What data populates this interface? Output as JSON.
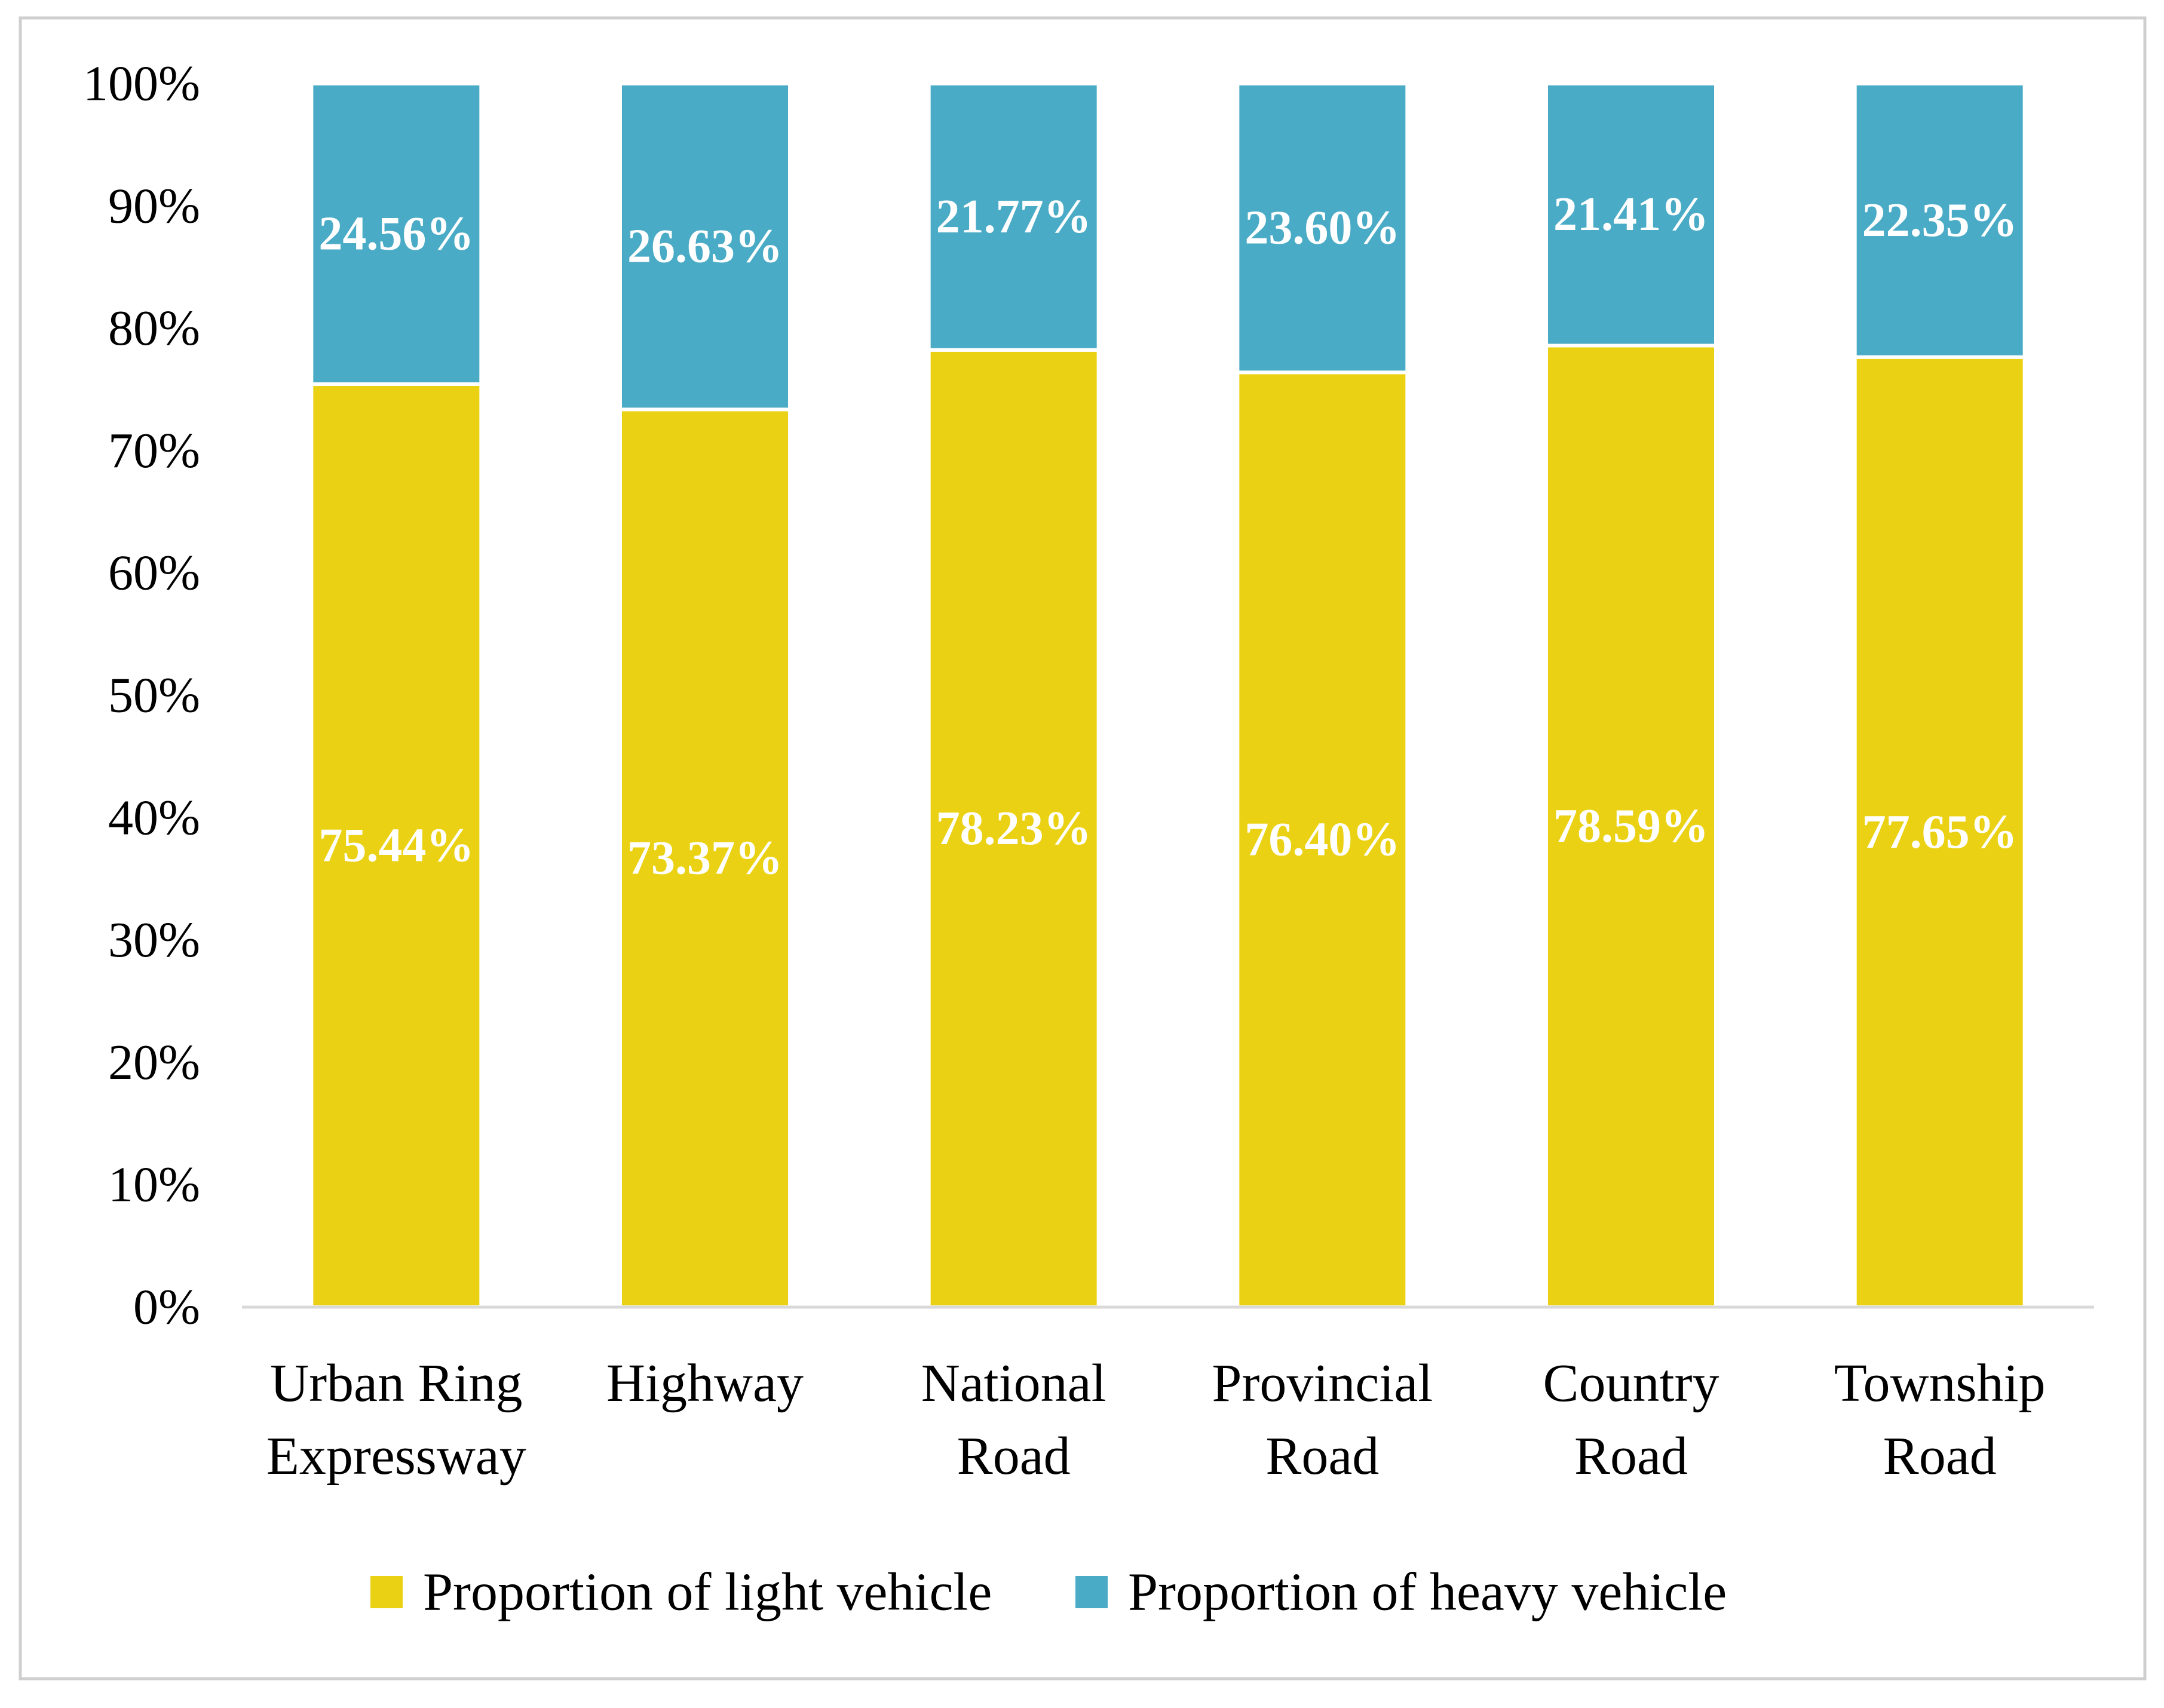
{
  "chart_data": {
    "type": "bar",
    "stacked": true,
    "percent_stacked": true,
    "title": "",
    "xlabel": "",
    "ylabel": "",
    "ylim": [
      0,
      100
    ],
    "y_ticks": [
      "0%",
      "10%",
      "20%",
      "30%",
      "40%",
      "50%",
      "60%",
      "70%",
      "80%",
      "90%",
      "100%"
    ],
    "categories": [
      [
        "Urban Ring",
        "Expressway"
      ],
      [
        "Highway"
      ],
      [
        "National",
        "Road"
      ],
      [
        "Provincial",
        "Road"
      ],
      [
        "Country",
        "Road"
      ],
      [
        "Township",
        "Road"
      ]
    ],
    "series": [
      {
        "name": "Proportion of light vehicle",
        "color": "#EBD113",
        "values": [
          75.44,
          73.37,
          78.23,
          76.4,
          78.59,
          77.65
        ],
        "labels": [
          "75.44%",
          "73.37%",
          "78.23%",
          "76.40%",
          "78.59%",
          "77.65%"
        ]
      },
      {
        "name": "Proportion of heavy vehicle",
        "color": "#4AABC6",
        "values": [
          24.56,
          26.63,
          21.77,
          23.6,
          21.41,
          22.35
        ],
        "labels": [
          "24.56%",
          "26.63%",
          "21.77%",
          "23.60%",
          "21.41%",
          "22.35%"
        ]
      }
    ],
    "legend_position": "bottom",
    "grid": false
  }
}
